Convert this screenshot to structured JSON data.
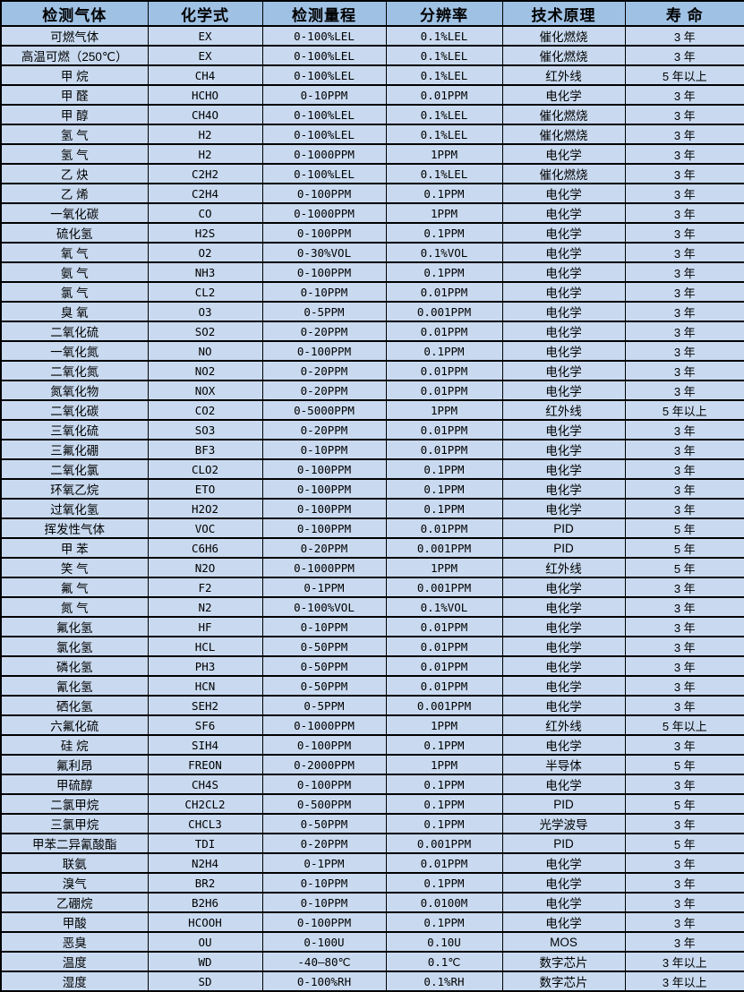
{
  "table": {
    "columns": [
      "检测气体",
      "化学式",
      "检测量程",
      "分辨率",
      "技术原理",
      "寿 命"
    ],
    "rows": [
      [
        "可燃气体",
        "EX",
        "0-100%LEL",
        "0.1%LEL",
        "催化燃烧",
        "3 年"
      ],
      [
        "高温可燃（250℃）",
        "EX",
        "0-100%LEL",
        "0.1%LEL",
        "催化燃烧",
        "3 年"
      ],
      [
        "甲 烷",
        "CH4",
        "0-100%LEL",
        "0.1%LEL",
        "红外线",
        "5 年以上"
      ],
      [
        "甲 醛",
        "HCHO",
        "0-10PPM",
        "0.01PPM",
        "电化学",
        "3 年"
      ],
      [
        "甲 醇",
        "CH4O",
        "0-100%LEL",
        "0.1%LEL",
        "催化燃烧",
        "3 年"
      ],
      [
        "氢 气",
        "H2",
        "0-100%LEL",
        "0.1%LEL",
        "催化燃烧",
        "3 年"
      ],
      [
        "氢 气",
        "H2",
        "0-1000PPM",
        "1PPM",
        "电化学",
        "3 年"
      ],
      [
        "乙 炔",
        "C2H2",
        "0-100%LEL",
        "0.1%LEL",
        "催化燃烧",
        "3 年"
      ],
      [
        "乙 烯",
        "C2H4",
        "0-100PPM",
        "0.1PPM",
        "电化学",
        "3 年"
      ],
      [
        "一氧化碳",
        "CO",
        "0-1000PPM",
        "1PPM",
        "电化学",
        "3 年"
      ],
      [
        "硫化氢",
        "H2S",
        "0-100PPM",
        "0.1PPM",
        "电化学",
        "3 年"
      ],
      [
        "氧 气",
        "O2",
        "0-30%VOL",
        "0.1%VOL",
        "电化学",
        "3 年"
      ],
      [
        "氨 气",
        "NH3",
        "0-100PPM",
        "0.1PPM",
        "电化学",
        "3 年"
      ],
      [
        "氯 气",
        "CL2",
        "0-10PPM",
        "0.01PPM",
        "电化学",
        "3 年"
      ],
      [
        "臭 氧",
        "O3",
        "0-5PPM",
        "0.001PPM",
        "电化学",
        "3 年"
      ],
      [
        "二氧化硫",
        "SO2",
        "0-20PPM",
        "0.01PPM",
        "电化学",
        "3 年"
      ],
      [
        "一氧化氮",
        "NO",
        "0-100PPM",
        "0.1PPM",
        "电化学",
        "3 年"
      ],
      [
        "二氧化氮",
        "NO2",
        "0-20PPM",
        "0.01PPM",
        "电化学",
        "3 年"
      ],
      [
        "氮氧化物",
        "NOX",
        "0-20PPM",
        "0.01PPM",
        "电化学",
        "3 年"
      ],
      [
        "二氧化碳",
        "CO2",
        "0-5000PPM",
        "1PPM",
        "红外线",
        "5 年以上"
      ],
      [
        "三氧化硫",
        "SO3",
        "0-20PPM",
        "0.01PPM",
        "电化学",
        "3 年"
      ],
      [
        "三氟化硼",
        "BF3",
        "0-10PPM",
        "0.01PPM",
        "电化学",
        "3 年"
      ],
      [
        "二氧化氯",
        "CLO2",
        "0-100PPM",
        "0.1PPM",
        "电化学",
        "3 年"
      ],
      [
        "环氧乙烷",
        "ETO",
        "0-100PPM",
        "0.1PPM",
        "电化学",
        "3 年"
      ],
      [
        "过氧化氢",
        "H2O2",
        "0-100PPM",
        "0.1PPM",
        "电化学",
        "3 年"
      ],
      [
        "挥发性气体",
        "VOC",
        "0-100PPM",
        "0.01PPM",
        "PID",
        "5 年"
      ],
      [
        "甲 苯",
        "C6H6",
        "0-20PPM",
        "0.001PPM",
        "PID",
        "5 年"
      ],
      [
        "笑 气",
        "N2O",
        "0-1000PPM",
        "1PPM",
        "红外线",
        "5 年"
      ],
      [
        "氟 气",
        "F2",
        "0-1PPM",
        "0.001PPM",
        "电化学",
        "3 年"
      ],
      [
        "氮 气",
        "N2",
        "0-100%VOL",
        "0.1%VOL",
        "电化学",
        "3 年"
      ],
      [
        "氟化氢",
        "HF",
        "0-10PPM",
        "0.01PPM",
        "电化学",
        "3 年"
      ],
      [
        "氯化氢",
        "HCL",
        "0-50PPM",
        "0.01PPM",
        "电化学",
        "3 年"
      ],
      [
        "磷化氢",
        "PH3",
        "0-50PPM",
        "0.01PPM",
        "电化学",
        "3 年"
      ],
      [
        "氰化氢",
        "HCN",
        "0-50PPM",
        "0.01PPM",
        "电化学",
        "3 年"
      ],
      [
        "硒化氢",
        "SEH2",
        "0-5PPM",
        "0.001PPM",
        "电化学",
        "3 年"
      ],
      [
        "六氟化硫",
        "SF6",
        "0-1000PPM",
        "1PPM",
        "红外线",
        "5 年以上"
      ],
      [
        "硅 烷",
        "SIH4",
        "0-100PPM",
        "0.1PPM",
        "电化学",
        "3 年"
      ],
      [
        "氟利昂",
        "FREON",
        "0-2000PPM",
        "1PPM",
        "半导体",
        "5 年"
      ],
      [
        "甲硫醇",
        "CH4S",
        "0-100PPM",
        "0.1PPM",
        "电化学",
        "3 年"
      ],
      [
        "二氯甲烷",
        "CH2CL2",
        "0-500PPM",
        "0.1PPM",
        "PID",
        "5 年"
      ],
      [
        "三氯甲烷",
        "CHCL3",
        "0-50PPM",
        "0.1PPM",
        "光学波导",
        "3 年"
      ],
      [
        "甲苯二异氰酸酯",
        "TDI",
        "0-20PPM",
        "0.001PPM",
        "PID",
        "5 年"
      ],
      [
        "联氨",
        "N2H4",
        "0-1PPM",
        "0.01PPM",
        "电化学",
        "3 年"
      ],
      [
        "溴气",
        "BR2",
        "0-10PPM",
        "0.1PPM",
        "电化学",
        "3 年"
      ],
      [
        "乙硼烷",
        "B2H6",
        "0-10PPM",
        "0.0100M",
        "电化学",
        "3 年"
      ],
      [
        "甲酸",
        "HCOOH",
        "0-100PPM",
        "0.1PPM",
        "电化学",
        "3 年"
      ],
      [
        "恶臭",
        "OU",
        "0-100U",
        "0.10U",
        "MOS",
        "3 年"
      ],
      [
        "温度",
        "WD",
        "-40—80℃",
        "0.1℃",
        "数字芯片",
        "3 年以上"
      ],
      [
        "湿度",
        "SD",
        "0-100%RH",
        "0.1%RH",
        "数字芯片",
        "3 年以上"
      ]
    ],
    "colors": {
      "header_bg": "#9fc1e4",
      "row_bg": "#c9daf0",
      "border": "#000000",
      "text": "#000000"
    }
  }
}
